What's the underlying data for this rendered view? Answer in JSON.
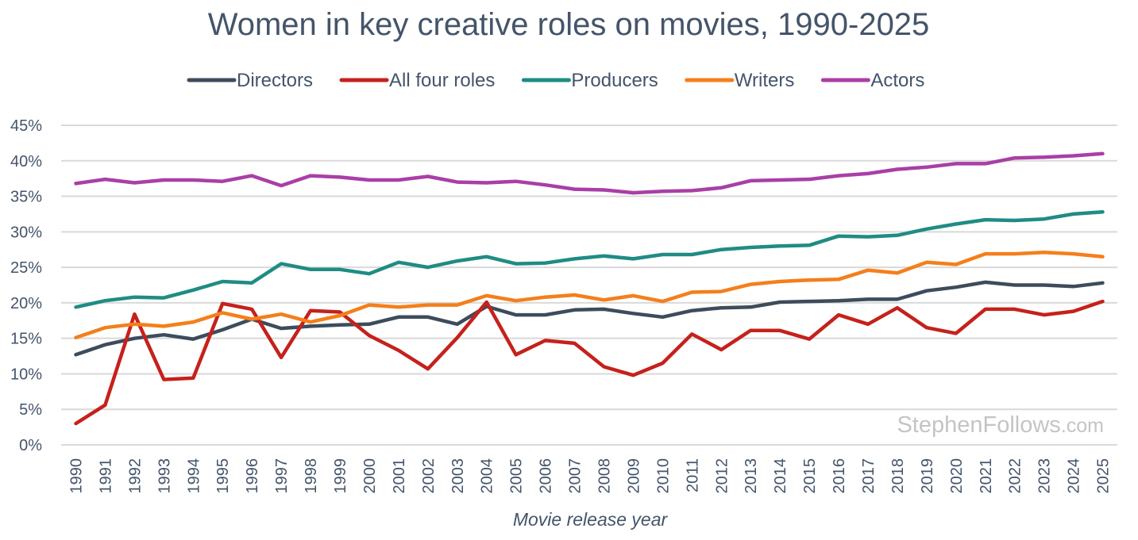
{
  "chart_data": {
    "type": "line",
    "title": "Women in key creative roles on movies, 1990-2025",
    "xlabel": "Movie release year",
    "ylabel": "",
    "ylim": [
      0,
      45
    ],
    "yticks": [
      "0%",
      "5%",
      "10%",
      "15%",
      "20%",
      "25%",
      "30%",
      "35%",
      "40%",
      "45%"
    ],
    "grid": true,
    "legend_position": "top",
    "watermark": "StephenFollows",
    "watermark_suffix": ".com",
    "categories": [
      "1990",
      "1991",
      "1992",
      "1993",
      "1994",
      "1995",
      "1996",
      "1997",
      "1998",
      "1999",
      "2000",
      "2001",
      "2002",
      "2003",
      "2004",
      "2005",
      "2006",
      "2007",
      "2008",
      "2009",
      "2010",
      "2011",
      "2012",
      "2013",
      "2014",
      "2015",
      "2016",
      "2017",
      "2018",
      "2019",
      "2020",
      "2021",
      "2022",
      "2023",
      "2024",
      "2025"
    ],
    "series": [
      {
        "name": "Directors",
        "color": "#3d4c5c",
        "values": [
          12.7,
          14.1,
          15.0,
          15.5,
          14.9,
          16.2,
          17.7,
          16.4,
          16.7,
          16.9,
          17.0,
          18.0,
          18.0,
          17.0,
          19.5,
          18.3,
          18.3,
          19.0,
          19.1,
          18.5,
          18.0,
          18.9,
          19.3,
          19.4,
          20.1,
          20.2,
          20.3,
          20.5,
          20.5,
          21.7,
          22.2,
          22.9,
          22.5,
          22.5,
          22.3,
          22.8
        ]
      },
      {
        "name": "All four roles",
        "color": "#c5211c",
        "values": [
          3.0,
          5.6,
          18.4,
          9.2,
          9.4,
          19.9,
          19.1,
          12.3,
          18.9,
          18.7,
          15.4,
          13.3,
          10.7,
          15.1,
          20.1,
          12.7,
          14.7,
          14.3,
          11.0,
          9.8,
          11.5,
          15.6,
          13.4,
          16.1,
          16.1,
          14.9,
          18.3,
          17.0,
          19.3,
          16.5,
          15.7,
          19.1,
          19.1,
          18.3,
          18.8,
          20.2
        ]
      },
      {
        "name": "Producers",
        "color": "#1f8c84",
        "values": [
          19.4,
          20.3,
          20.8,
          20.7,
          21.8,
          23.0,
          22.8,
          25.5,
          24.7,
          24.7,
          24.1,
          25.7,
          25.0,
          25.9,
          26.5,
          25.5,
          25.6,
          26.2,
          26.6,
          26.2,
          26.8,
          26.8,
          27.5,
          27.8,
          28.0,
          28.1,
          29.4,
          29.3,
          29.5,
          30.4,
          31.1,
          31.7,
          31.6,
          31.8,
          32.5,
          32.8
        ]
      },
      {
        "name": "Writers",
        "color": "#f47f1b",
        "values": [
          15.1,
          16.5,
          17.0,
          16.7,
          17.3,
          18.6,
          17.7,
          18.4,
          17.3,
          18.2,
          19.7,
          19.4,
          19.7,
          19.7,
          21.0,
          20.3,
          20.8,
          21.1,
          20.4,
          21.0,
          20.2,
          21.5,
          21.6,
          22.6,
          23.0,
          23.2,
          23.3,
          24.6,
          24.2,
          25.7,
          25.4,
          26.9,
          26.9,
          27.1,
          26.9,
          26.5
        ]
      },
      {
        "name": "Actors",
        "color": "#a93fa6",
        "values": [
          36.8,
          37.4,
          36.9,
          37.3,
          37.3,
          37.1,
          37.9,
          36.5,
          37.9,
          37.7,
          37.3,
          37.3,
          37.8,
          37.0,
          36.9,
          37.1,
          36.6,
          36.0,
          35.9,
          35.5,
          35.7,
          35.8,
          36.2,
          37.2,
          37.3,
          37.4,
          37.9,
          38.2,
          38.8,
          39.1,
          39.6,
          39.6,
          40.4,
          40.5,
          40.7,
          41.0
        ]
      }
    ]
  }
}
